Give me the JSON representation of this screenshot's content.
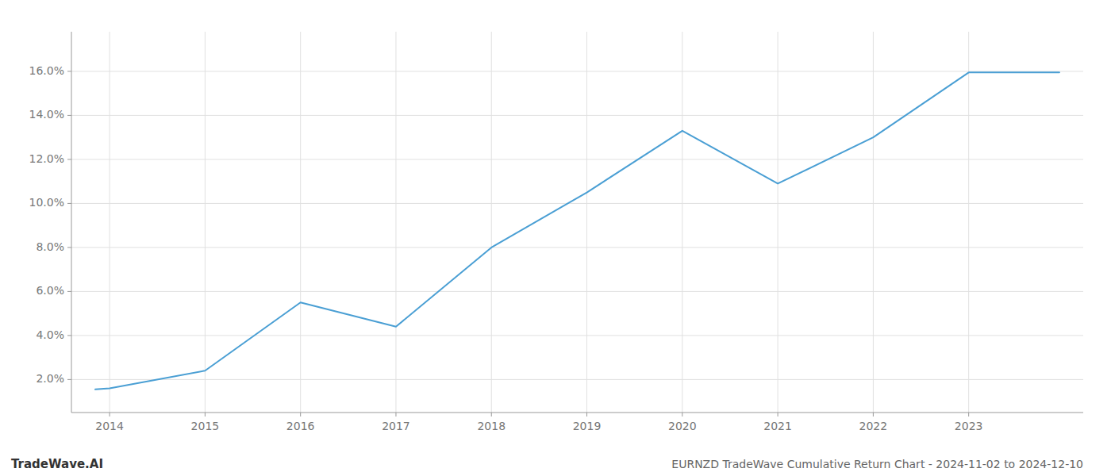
{
  "chart_data": {
    "type": "line",
    "title": "EURNZD TradeWave Cumulative Return Chart - 2024-11-02 to 2024-12-10",
    "annotations": [
      "TradeWave.AI"
    ],
    "x": [
      2013.85,
      2014,
      2015,
      2016,
      2017,
      2018,
      2019,
      2020,
      2021,
      2022,
      2023,
      2023.95
    ],
    "values": [
      1.55,
      1.6,
      2.4,
      5.5,
      4.4,
      8.0,
      10.5,
      13.3,
      10.9,
      13.0,
      15.95,
      15.95
    ],
    "color": "#4a9fd4",
    "xlim": [
      2013.6,
      2024.2
    ],
    "ylim": [
      0.5,
      17.8
    ],
    "xticks": [
      2014,
      2015,
      2016,
      2017,
      2018,
      2019,
      2020,
      2021,
      2022,
      2023
    ],
    "yticks": [
      {
        "value": 2.0,
        "label": "2.0%"
      },
      {
        "value": 4.0,
        "label": "4.0%"
      },
      {
        "value": 6.0,
        "label": "6.0%"
      },
      {
        "value": 8.0,
        "label": "8.0%"
      },
      {
        "value": 10.0,
        "label": "10.0%"
      },
      {
        "value": 12.0,
        "label": "12.0%"
      },
      {
        "value": 14.0,
        "label": "14.0%"
      },
      {
        "value": 16.0,
        "label": "16.0%"
      }
    ],
    "grid": true
  }
}
